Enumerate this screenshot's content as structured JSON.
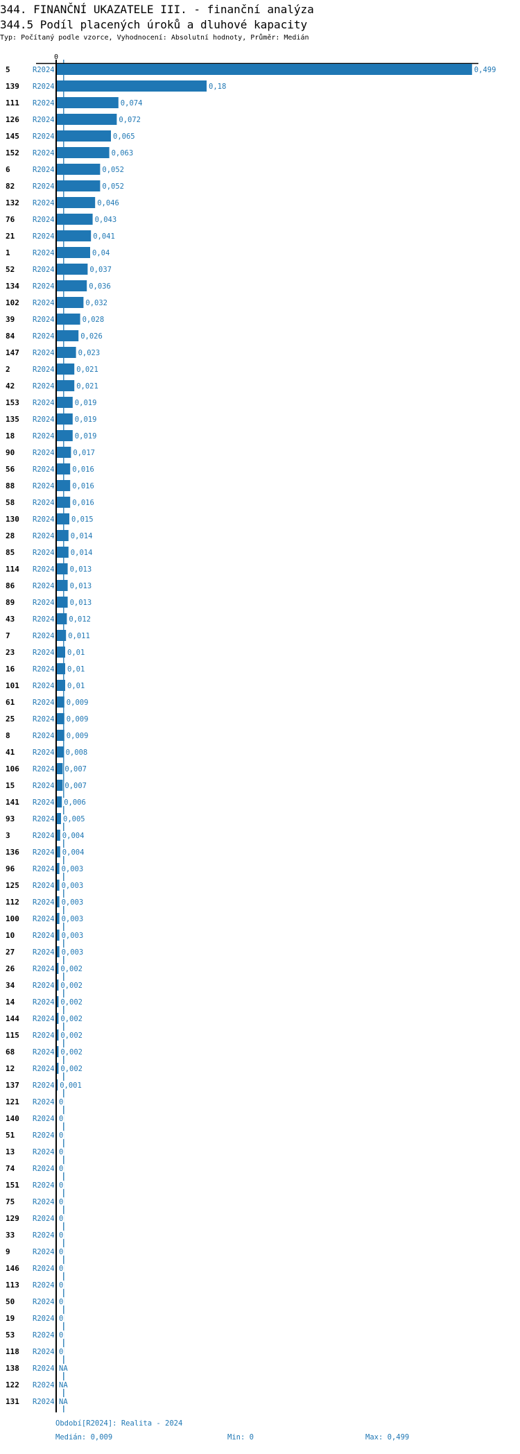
{
  "header": {
    "title": "344. FINANČNÍ UKAZATELE III. - finanční analýza",
    "subtitle": "344.5 Podíl placených úroků a dluhové kapacity",
    "info": "Typ: Počítaný podle vzorce, Vyhodnocení: Absolutní hodnoty, Průměr: Medián"
  },
  "chart_data": {
    "type": "bar",
    "orientation": "horizontal",
    "axis_tick_label": "0",
    "xlim": [
      0,
      0.5
    ],
    "median": 0.009,
    "colors": {
      "bar": "#1f77b4",
      "label": "#1f77b4",
      "axis": "#000000",
      "median_line": "#1f77b4"
    },
    "rows": [
      {
        "id": "5",
        "period": "R2024",
        "value": 0.499,
        "label": "0,499"
      },
      {
        "id": "139",
        "period": "R2024",
        "value": 0.18,
        "label": "0,18"
      },
      {
        "id": "111",
        "period": "R2024",
        "value": 0.074,
        "label": "0,074"
      },
      {
        "id": "126",
        "period": "R2024",
        "value": 0.072,
        "label": "0,072"
      },
      {
        "id": "145",
        "period": "R2024",
        "value": 0.065,
        "label": "0,065"
      },
      {
        "id": "152",
        "period": "R2024",
        "value": 0.063,
        "label": "0,063"
      },
      {
        "id": "6",
        "period": "R2024",
        "value": 0.052,
        "label": "0,052"
      },
      {
        "id": "82",
        "period": "R2024",
        "value": 0.052,
        "label": "0,052"
      },
      {
        "id": "132",
        "period": "R2024",
        "value": 0.046,
        "label": "0,046"
      },
      {
        "id": "76",
        "period": "R2024",
        "value": 0.043,
        "label": "0,043"
      },
      {
        "id": "21",
        "period": "R2024",
        "value": 0.041,
        "label": "0,041"
      },
      {
        "id": "1",
        "period": "R2024",
        "value": 0.04,
        "label": "0,04"
      },
      {
        "id": "52",
        "period": "R2024",
        "value": 0.037,
        "label": "0,037"
      },
      {
        "id": "134",
        "period": "R2024",
        "value": 0.036,
        "label": "0,036"
      },
      {
        "id": "102",
        "period": "R2024",
        "value": 0.032,
        "label": "0,032"
      },
      {
        "id": "39",
        "period": "R2024",
        "value": 0.028,
        "label": "0,028"
      },
      {
        "id": "84",
        "period": "R2024",
        "value": 0.026,
        "label": "0,026"
      },
      {
        "id": "147",
        "period": "R2024",
        "value": 0.023,
        "label": "0,023"
      },
      {
        "id": "2",
        "period": "R2024",
        "value": 0.021,
        "label": "0,021"
      },
      {
        "id": "42",
        "period": "R2024",
        "value": 0.021,
        "label": "0,021"
      },
      {
        "id": "153",
        "period": "R2024",
        "value": 0.019,
        "label": "0,019"
      },
      {
        "id": "135",
        "period": "R2024",
        "value": 0.019,
        "label": "0,019"
      },
      {
        "id": "18",
        "period": "R2024",
        "value": 0.019,
        "label": "0,019"
      },
      {
        "id": "90",
        "period": "R2024",
        "value": 0.017,
        "label": "0,017"
      },
      {
        "id": "56",
        "period": "R2024",
        "value": 0.016,
        "label": "0,016"
      },
      {
        "id": "88",
        "period": "R2024",
        "value": 0.016,
        "label": "0,016"
      },
      {
        "id": "58",
        "period": "R2024",
        "value": 0.016,
        "label": "0,016"
      },
      {
        "id": "130",
        "period": "R2024",
        "value": 0.015,
        "label": "0,015"
      },
      {
        "id": "28",
        "period": "R2024",
        "value": 0.014,
        "label": "0,014"
      },
      {
        "id": "85",
        "period": "R2024",
        "value": 0.014,
        "label": "0,014"
      },
      {
        "id": "114",
        "period": "R2024",
        "value": 0.013,
        "label": "0,013"
      },
      {
        "id": "86",
        "period": "R2024",
        "value": 0.013,
        "label": "0,013"
      },
      {
        "id": "89",
        "period": "R2024",
        "value": 0.013,
        "label": "0,013"
      },
      {
        "id": "43",
        "period": "R2024",
        "value": 0.012,
        "label": "0,012"
      },
      {
        "id": "7",
        "period": "R2024",
        "value": 0.011,
        "label": "0,011"
      },
      {
        "id": "23",
        "period": "R2024",
        "value": 0.01,
        "label": "0,01"
      },
      {
        "id": "16",
        "period": "R2024",
        "value": 0.01,
        "label": "0,01"
      },
      {
        "id": "101",
        "period": "R2024",
        "value": 0.01,
        "label": "0,01"
      },
      {
        "id": "61",
        "period": "R2024",
        "value": 0.009,
        "label": "0,009"
      },
      {
        "id": "25",
        "period": "R2024",
        "value": 0.009,
        "label": "0,009"
      },
      {
        "id": "8",
        "period": "R2024",
        "value": 0.009,
        "label": "0,009"
      },
      {
        "id": "41",
        "period": "R2024",
        "value": 0.008,
        "label": "0,008"
      },
      {
        "id": "106",
        "period": "R2024",
        "value": 0.007,
        "label": "0,007"
      },
      {
        "id": "15",
        "period": "R2024",
        "value": 0.007,
        "label": "0,007"
      },
      {
        "id": "141",
        "period": "R2024",
        "value": 0.006,
        "label": "0,006"
      },
      {
        "id": "93",
        "period": "R2024",
        "value": 0.005,
        "label": "0,005"
      },
      {
        "id": "3",
        "period": "R2024",
        "value": 0.004,
        "label": "0,004"
      },
      {
        "id": "136",
        "period": "R2024",
        "value": 0.004,
        "label": "0,004"
      },
      {
        "id": "96",
        "period": "R2024",
        "value": 0.003,
        "label": "0,003"
      },
      {
        "id": "125",
        "period": "R2024",
        "value": 0.003,
        "label": "0,003"
      },
      {
        "id": "112",
        "period": "R2024",
        "value": 0.003,
        "label": "0,003"
      },
      {
        "id": "100",
        "period": "R2024",
        "value": 0.003,
        "label": "0,003"
      },
      {
        "id": "10",
        "period": "R2024",
        "value": 0.003,
        "label": "0,003"
      },
      {
        "id": "27",
        "period": "R2024",
        "value": 0.003,
        "label": "0,003"
      },
      {
        "id": "26",
        "period": "R2024",
        "value": 0.002,
        "label": "0,002"
      },
      {
        "id": "34",
        "period": "R2024",
        "value": 0.002,
        "label": "0,002"
      },
      {
        "id": "14",
        "period": "R2024",
        "value": 0.002,
        "label": "0,002"
      },
      {
        "id": "144",
        "period": "R2024",
        "value": 0.002,
        "label": "0,002"
      },
      {
        "id": "115",
        "period": "R2024",
        "value": 0.002,
        "label": "0,002"
      },
      {
        "id": "68",
        "period": "R2024",
        "value": 0.002,
        "label": "0,002"
      },
      {
        "id": "12",
        "period": "R2024",
        "value": 0.002,
        "label": "0,002"
      },
      {
        "id": "137",
        "period": "R2024",
        "value": 0.001,
        "label": "0,001"
      },
      {
        "id": "121",
        "period": "R2024",
        "value": 0,
        "label": "0"
      },
      {
        "id": "140",
        "period": "R2024",
        "value": 0,
        "label": "0"
      },
      {
        "id": "51",
        "period": "R2024",
        "value": 0,
        "label": "0"
      },
      {
        "id": "13",
        "period": "R2024",
        "value": 0,
        "label": "0"
      },
      {
        "id": "74",
        "period": "R2024",
        "value": 0,
        "label": "0"
      },
      {
        "id": "151",
        "period": "R2024",
        "value": 0,
        "label": "0"
      },
      {
        "id": "75",
        "period": "R2024",
        "value": 0,
        "label": "0"
      },
      {
        "id": "129",
        "period": "R2024",
        "value": 0,
        "label": "0"
      },
      {
        "id": "33",
        "period": "R2024",
        "value": 0,
        "label": "0"
      },
      {
        "id": "9",
        "period": "R2024",
        "value": 0,
        "label": "0"
      },
      {
        "id": "146",
        "period": "R2024",
        "value": 0,
        "label": "0"
      },
      {
        "id": "113",
        "period": "R2024",
        "value": 0,
        "label": "0"
      },
      {
        "id": "50",
        "period": "R2024",
        "value": 0,
        "label": "0"
      },
      {
        "id": "19",
        "period": "R2024",
        "value": 0,
        "label": "0"
      },
      {
        "id": "53",
        "period": "R2024",
        "value": 0,
        "label": "0"
      },
      {
        "id": "118",
        "period": "R2024",
        "value": 0,
        "label": "0"
      },
      {
        "id": "138",
        "period": "R2024",
        "value": null,
        "label": "NA"
      },
      {
        "id": "122",
        "period": "R2024",
        "value": null,
        "label": "NA"
      },
      {
        "id": "131",
        "period": "R2024",
        "value": null,
        "label": "NA"
      }
    ]
  },
  "footer": {
    "period": "Období[R2024]: Realita - 2024",
    "median": "Medián: 0,009",
    "min": "Min: 0",
    "max": "Max: 0,499"
  }
}
